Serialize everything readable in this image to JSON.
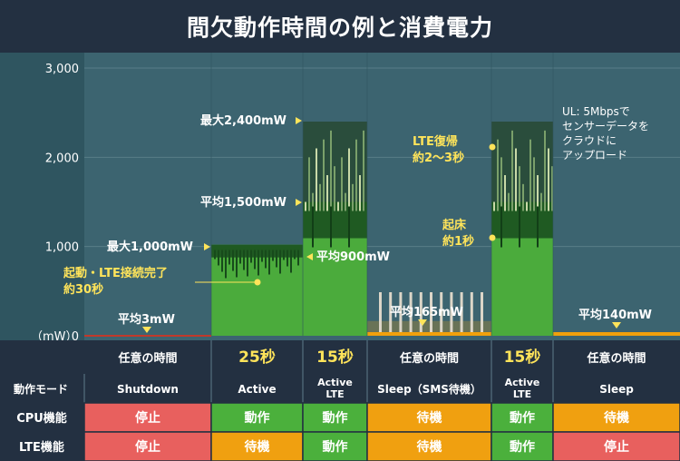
{
  "title": "間欠動作時間の例と消費電力",
  "colors": {
    "header_bg": "#233041",
    "plot_bg": "#3c6470",
    "gridline": "#577d87",
    "active": "#4bab3c",
    "active_dark": "#1f5a22",
    "max_box": "#2a4d3c",
    "sleep": "#f0a00c",
    "shutdown_row": "#e8605e",
    "table_bg": "#233041",
    "mode_row_bg": "#233041",
    "label_yellow": "#ffe45a",
    "row_green": "#4bb03c",
    "row_orange": "#f0a010"
  },
  "chart_data": {
    "type": "area",
    "ylabel": "（mW）",
    "ylim": [
      0,
      3000
    ],
    "yticks": [
      {
        "value": 3000,
        "label": "3,000"
      },
      {
        "value": 2000,
        "label": "2,000"
      },
      {
        "value": 1000,
        "label": "1,000"
      },
      {
        "value": 0,
        "label": "0"
      }
    ],
    "segments": [
      {
        "phase": "任意の時間",
        "mode": "Shutdown",
        "avg": 3,
        "max": null,
        "color": "shutdown"
      },
      {
        "phase": "25秒",
        "mode": "Active",
        "avg": 900,
        "max": 1000,
        "color": "active"
      },
      {
        "phase": "15秒",
        "mode": "Active\nLTE",
        "avg": 1500,
        "max": 2400,
        "color": "active"
      },
      {
        "phase": "任意の時間",
        "mode": "Sleep",
        "avg": 165,
        "max": null,
        "color": "sleep"
      },
      {
        "phase": "15秒",
        "mode": "Active\nLTE",
        "avg": 1500,
        "max": 2400,
        "color": "active"
      },
      {
        "phase": "任意の時間",
        "mode": "Sleep",
        "avg": 140,
        "max": null,
        "color": "sleep"
      }
    ],
    "annotations": {
      "shutdown_avg": "平均3mW",
      "active_max": "最大1,000mW",
      "active_avg": "平均900mW",
      "boot": "起動・LTE接続完了\n約30秒",
      "lte_max": "最大2,400mW",
      "lte_avg": "平均1,500mW",
      "sleep_avg": "平均165mW",
      "lte_restore": "LTE復帰\n約2〜3秒",
      "wake": "起床\n約1秒",
      "ul_note": "UL: 5Mbpsで\nセンサーデータを\nクラウドに\nアップロード",
      "sleep2_avg": "平均140mW"
    }
  },
  "table": {
    "header_row": [
      "動作モード",
      "Shutdown",
      "Active",
      "Active\nLTE",
      "Sleep（SMS待機）",
      "Active\nLTE",
      "Sleep"
    ],
    "rows": [
      {
        "label": "CPU機能",
        "cells": [
          {
            "text": "停止",
            "status": "stop"
          },
          {
            "text": "動作",
            "status": "run"
          },
          {
            "text": "動作",
            "status": "run"
          },
          {
            "text": "待機",
            "status": "wait"
          },
          {
            "text": "動作",
            "status": "run"
          },
          {
            "text": "待機",
            "status": "wait"
          }
        ]
      },
      {
        "label": "LTE機能",
        "cells": [
          {
            "text": "停止",
            "status": "stop"
          },
          {
            "text": "待機",
            "status": "wait"
          },
          {
            "text": "動作",
            "status": "run"
          },
          {
            "text": "待機",
            "status": "wait"
          },
          {
            "text": "動作",
            "status": "run"
          },
          {
            "text": "停止",
            "status": "stop"
          }
        ]
      }
    ]
  }
}
